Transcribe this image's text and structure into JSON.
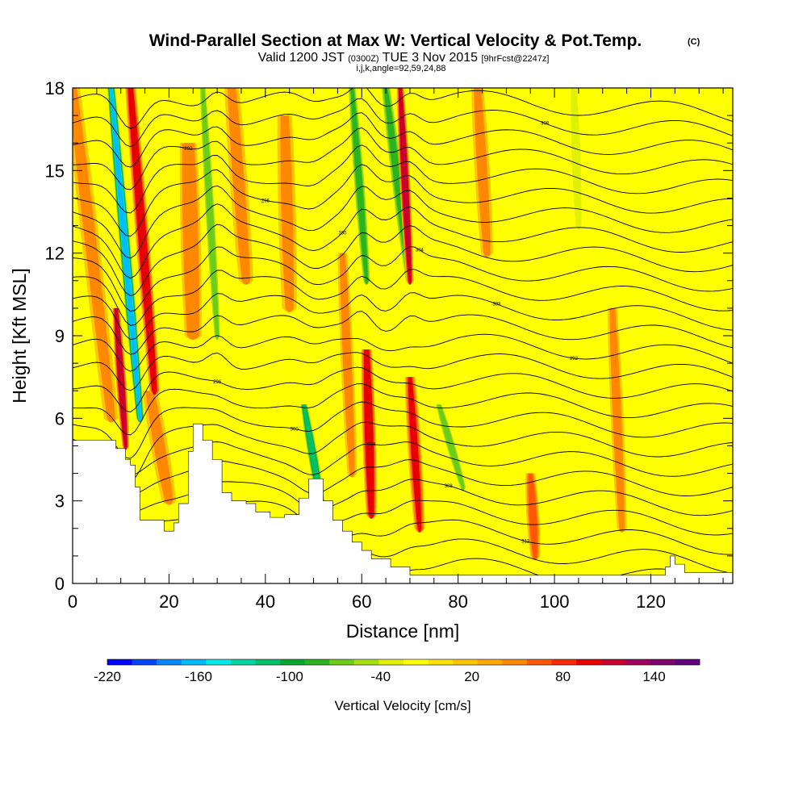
{
  "chart_data": {
    "type": "heatmap",
    "title": "Wind-Parallel Section at Max W: Vertical Velocity & Pot.Temp.",
    "title_mark": "(C)",
    "subtitle": {
      "prefix": "Valid 1200 JST",
      "utc": "(0300Z)",
      "date": "TUE 3 Nov 2015",
      "forecast": "[9hrFcst@2247z]"
    },
    "subtitle2": "i,j,k,angle=92,59,24,88",
    "xlabel": "Distance [nm]",
    "ylabel": "Height [Kft MSL]",
    "xlim": [
      0,
      137
    ],
    "ylim": [
      0,
      18
    ],
    "x_ticks": [
      0,
      20,
      40,
      60,
      80,
      100,
      120
    ],
    "y_ticks": [
      0,
      3,
      6,
      9,
      12,
      15,
      18
    ],
    "grid": false,
    "colorbar": {
      "label": "Vertical Velocity [cm/s]",
      "tick_labels": [
        "-220",
        "-160",
        "-100",
        "-40",
        "20",
        "80",
        "140"
      ],
      "tick_values": [
        -220,
        -160,
        -100,
        -40,
        20,
        80,
        140
      ],
      "range": [
        -220,
        170
      ],
      "colors": [
        "#0000ff",
        "#0044ff",
        "#0088ff",
        "#00bbff",
        "#00eaea",
        "#00d7a0",
        "#00c068",
        "#00a830",
        "#2cb420",
        "#6ccc18",
        "#a8e010",
        "#dff000",
        "#ffff00",
        "#ffe000",
        "#ffc400",
        "#ffa800",
        "#ff8800",
        "#ff5800",
        "#ff2800",
        "#e80000",
        "#c80030",
        "#a00060",
        "#800070",
        "#600080"
      ]
    },
    "terrain_profile": [
      [
        0,
        5.2
      ],
      [
        4,
        5.2
      ],
      [
        8,
        5.2
      ],
      [
        9,
        4.9
      ],
      [
        11,
        4.5
      ],
      [
        12,
        4.3
      ],
      [
        13,
        3.5
      ],
      [
        14,
        2.3
      ],
      [
        18,
        2.3
      ],
      [
        19,
        1.9
      ],
      [
        21,
        2.2
      ],
      [
        22,
        2.9
      ],
      [
        24,
        4.8
      ],
      [
        25,
        5.8
      ],
      [
        26,
        5.8
      ],
      [
        27,
        5.2
      ],
      [
        29,
        4.5
      ],
      [
        31,
        3.3
      ],
      [
        33,
        3.0
      ],
      [
        36,
        2.9
      ],
      [
        38,
        2.6
      ],
      [
        41,
        2.4
      ],
      [
        44,
        2.5
      ],
      [
        47,
        3.1
      ],
      [
        49,
        3.8
      ],
      [
        51,
        3.8
      ],
      [
        52,
        3.0
      ],
      [
        54,
        2.3
      ],
      [
        56,
        1.9
      ],
      [
        58,
        1.5
      ],
      [
        60,
        1.2
      ],
      [
        62,
        0.9
      ],
      [
        66,
        0.6
      ],
      [
        70,
        0.3
      ],
      [
        80,
        0.3
      ],
      [
        100,
        0.3
      ],
      [
        120,
        0.3
      ],
      [
        123,
        0.6
      ],
      [
        124,
        1.0
      ],
      [
        125,
        0.7
      ],
      [
        127,
        0.4
      ],
      [
        137,
        0.3
      ]
    ],
    "w_features": [
      {
        "x0": 8,
        "x1": 14,
        "y0": 18,
        "y1": 6,
        "width": 1.8,
        "value": -170
      },
      {
        "x0": 12,
        "x1": 17,
        "y0": 18,
        "y1": 7,
        "width": 2.2,
        "value": 100
      },
      {
        "x0": 9,
        "x1": 11,
        "y0": 10,
        "y1": 5,
        "width": 1.5,
        "value": 110
      },
      {
        "x0": 27,
        "x1": 30,
        "y0": 18,
        "y1": 9,
        "width": 1.6,
        "value": -70
      },
      {
        "x0": 48,
        "x1": 52,
        "y0": 6.5,
        "y1": 2.5,
        "width": 1.6,
        "value": -120
      },
      {
        "x0": 58,
        "x1": 61,
        "y0": 18,
        "y1": 11,
        "width": 1.8,
        "value": -90
      },
      {
        "x0": 61,
        "x1": 62,
        "y0": 8.5,
        "y1": 2.5,
        "width": 2.2,
        "value": 100
      },
      {
        "x0": 65,
        "x1": 70,
        "y0": 18,
        "y1": 11,
        "width": 2.2,
        "value": -80
      },
      {
        "x0": 68,
        "x1": 70,
        "y0": 18,
        "y1": 11,
        "width": 1.5,
        "value": 110
      },
      {
        "x0": 70,
        "x1": 72,
        "y0": 7.5,
        "y1": 2.0,
        "width": 2.2,
        "value": 90
      },
      {
        "x0": 76,
        "x1": 81,
        "y0": 6.5,
        "y1": 3.5,
        "width": 1.6,
        "value": -70
      },
      {
        "x0": 24,
        "x1": 25,
        "y0": 16,
        "y1": 9,
        "width": 3.5,
        "value": 50
      },
      {
        "x0": 44,
        "x1": 45,
        "y0": 17,
        "y1": 10,
        "width": 3,
        "value": 45
      },
      {
        "x0": 95,
        "x1": 96,
        "y0": 4,
        "y1": 1,
        "width": 2,
        "value": 60
      },
      {
        "x0": 104,
        "x1": 105,
        "y0": 18,
        "y1": 13,
        "width": 2,
        "value": -35
      }
    ],
    "isentrope_labels": [
      "312",
      "308",
      "304",
      "300",
      "296",
      "292",
      "308",
      "304",
      "300",
      "296",
      "292",
      "308",
      "300",
      "296",
      "304",
      "296",
      "292"
    ]
  }
}
